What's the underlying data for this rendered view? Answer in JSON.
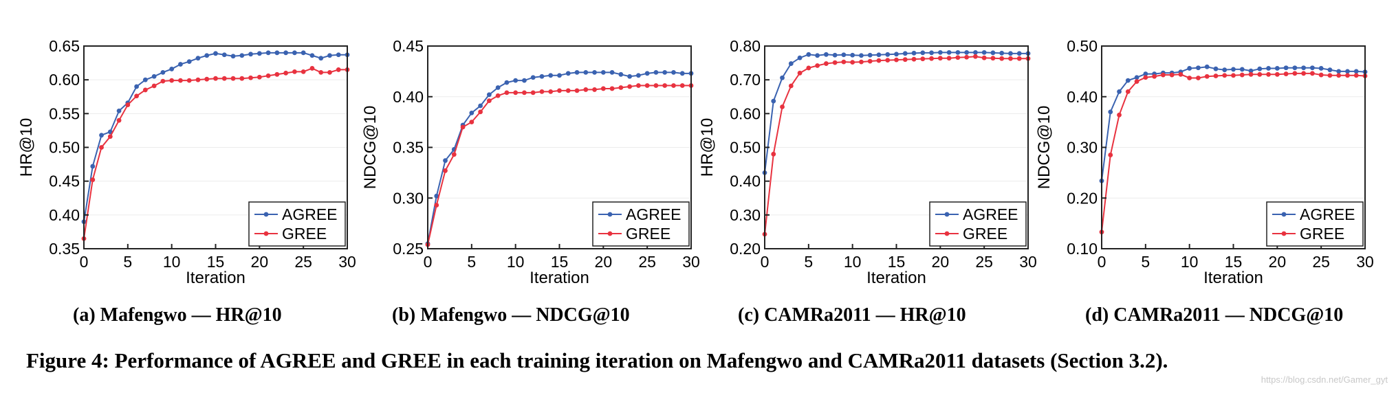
{
  "colors": {
    "agree": "#3a62b0",
    "gree": "#e8323f"
  },
  "legend_labels": [
    "AGREE",
    "GREE"
  ],
  "xlabel": "Iteration",
  "x_ticks": [
    "0",
    "5",
    "10",
    "15",
    "20",
    "25",
    "30"
  ],
  "chart_data": [
    {
      "type": "line",
      "title": "(a) Mafengwo — HR@10",
      "xlabel": "Iteration",
      "ylabel": "HR@10",
      "xlim": [
        0,
        30
      ],
      "ylim": [
        0.35,
        0.65
      ],
      "y_ticks": [
        "0.35",
        "0.40",
        "0.45",
        "0.50",
        "0.55",
        "0.60",
        "0.65"
      ],
      "legend": "bottom-right",
      "x": [
        0,
        1,
        2,
        3,
        4,
        5,
        6,
        7,
        8,
        9,
        10,
        11,
        12,
        13,
        14,
        15,
        16,
        17,
        18,
        19,
        20,
        21,
        22,
        23,
        24,
        25,
        26,
        27,
        28,
        29,
        30
      ],
      "series": [
        {
          "name": "AGREE",
          "values": [
            0.39,
            0.472,
            0.518,
            0.523,
            0.554,
            0.566,
            0.59,
            0.6,
            0.605,
            0.611,
            0.616,
            0.623,
            0.627,
            0.632,
            0.636,
            0.639,
            0.637,
            0.635,
            0.636,
            0.638,
            0.639,
            0.64,
            0.64,
            0.64,
            0.64,
            0.64,
            0.636,
            0.632,
            0.636,
            0.637,
            0.637
          ]
        },
        {
          "name": "GREE",
          "values": [
            0.365,
            0.452,
            0.5,
            0.516,
            0.54,
            0.563,
            0.576,
            0.585,
            0.591,
            0.598,
            0.599,
            0.599,
            0.599,
            0.6,
            0.601,
            0.602,
            0.602,
            0.602,
            0.602,
            0.603,
            0.604,
            0.606,
            0.608,
            0.61,
            0.612,
            0.612,
            0.617,
            0.611,
            0.611,
            0.615,
            0.615
          ]
        }
      ]
    },
    {
      "type": "line",
      "title": "(b) Mafengwo — NDCG@10",
      "xlabel": "Iteration",
      "ylabel": "NDCG@10",
      "xlim": [
        0,
        30
      ],
      "ylim": [
        0.25,
        0.45
      ],
      "y_ticks": [
        "0.25",
        "0.30",
        "0.35",
        "0.40",
        "0.45"
      ],
      "legend": "bottom-right",
      "x": [
        0,
        1,
        2,
        3,
        4,
        5,
        6,
        7,
        8,
        9,
        10,
        11,
        12,
        13,
        14,
        15,
        16,
        17,
        18,
        19,
        20,
        21,
        22,
        23,
        24,
        25,
        26,
        27,
        28,
        29,
        30
      ],
      "series": [
        {
          "name": "AGREE",
          "values": [
            0.255,
            0.302,
            0.337,
            0.348,
            0.372,
            0.384,
            0.391,
            0.402,
            0.409,
            0.414,
            0.416,
            0.416,
            0.419,
            0.42,
            0.421,
            0.421,
            0.423,
            0.424,
            0.424,
            0.424,
            0.424,
            0.424,
            0.422,
            0.42,
            0.421,
            0.423,
            0.424,
            0.424,
            0.424,
            0.423,
            0.423
          ]
        },
        {
          "name": "GREE",
          "values": [
            0.254,
            0.293,
            0.327,
            0.343,
            0.37,
            0.375,
            0.385,
            0.396,
            0.401,
            0.404,
            0.404,
            0.404,
            0.404,
            0.405,
            0.405,
            0.406,
            0.406,
            0.406,
            0.407,
            0.407,
            0.408,
            0.408,
            0.409,
            0.41,
            0.411,
            0.411,
            0.411,
            0.411,
            0.411,
            0.411,
            0.411
          ]
        }
      ]
    },
    {
      "type": "line",
      "title": "(c) CAMRa2011 — HR@10",
      "xlabel": "Iteration",
      "ylabel": "HR@10",
      "xlim": [
        0,
        30
      ],
      "ylim": [
        0.2,
        0.8
      ],
      "y_ticks": [
        "0.20",
        "0.30",
        "0.40",
        "0.50",
        "0.60",
        "0.70",
        "0.80"
      ],
      "legend": "bottom-right",
      "x": [
        0,
        1,
        2,
        3,
        4,
        5,
        6,
        7,
        8,
        9,
        10,
        11,
        12,
        13,
        14,
        15,
        16,
        17,
        18,
        19,
        20,
        21,
        22,
        23,
        24,
        25,
        26,
        27,
        28,
        29,
        30
      ],
      "series": [
        {
          "name": "AGREE",
          "values": [
            0.425,
            0.637,
            0.706,
            0.748,
            0.765,
            0.775,
            0.772,
            0.775,
            0.773,
            0.774,
            0.773,
            0.772,
            0.773,
            0.774,
            0.775,
            0.776,
            0.778,
            0.779,
            0.78,
            0.78,
            0.781,
            0.781,
            0.781,
            0.781,
            0.781,
            0.781,
            0.78,
            0.779,
            0.778,
            0.778,
            0.778
          ]
        },
        {
          "name": "GREE",
          "values": [
            0.243,
            0.48,
            0.62,
            0.682,
            0.72,
            0.735,
            0.742,
            0.748,
            0.751,
            0.753,
            0.752,
            0.753,
            0.755,
            0.757,
            0.758,
            0.759,
            0.76,
            0.761,
            0.762,
            0.763,
            0.764,
            0.764,
            0.766,
            0.767,
            0.769,
            0.765,
            0.764,
            0.763,
            0.763,
            0.763,
            0.763
          ]
        }
      ]
    },
    {
      "type": "line",
      "title": "(d) CAMRa2011 — NDCG@10",
      "xlabel": "Iteration",
      "ylabel": "NDCG@10",
      "xlim": [
        0,
        30
      ],
      "ylim": [
        0.1,
        0.5
      ],
      "y_ticks": [
        "0.10",
        "0.20",
        "0.30",
        "0.40",
        "0.50"
      ],
      "legend": "bottom-right",
      "x": [
        0,
        1,
        2,
        3,
        4,
        5,
        6,
        7,
        8,
        9,
        10,
        11,
        12,
        13,
        14,
        15,
        16,
        17,
        18,
        19,
        20,
        21,
        22,
        23,
        24,
        25,
        26,
        27,
        28,
        29,
        30
      ],
      "series": [
        {
          "name": "AGREE",
          "values": [
            0.234,
            0.37,
            0.41,
            0.432,
            0.438,
            0.445,
            0.445,
            0.447,
            0.447,
            0.449,
            0.456,
            0.457,
            0.459,
            0.455,
            0.453,
            0.454,
            0.454,
            0.451,
            0.455,
            0.456,
            0.456,
            0.457,
            0.457,
            0.457,
            0.457,
            0.456,
            0.453,
            0.45,
            0.45,
            0.45,
            0.449
          ]
        },
        {
          "name": "GREE",
          "values": [
            0.133,
            0.285,
            0.364,
            0.41,
            0.43,
            0.438,
            0.44,
            0.443,
            0.443,
            0.444,
            0.437,
            0.437,
            0.44,
            0.441,
            0.442,
            0.442,
            0.443,
            0.444,
            0.444,
            0.444,
            0.444,
            0.445,
            0.446,
            0.446,
            0.446,
            0.443,
            0.442,
            0.442,
            0.442,
            0.442,
            0.441
          ]
        }
      ]
    }
  ],
  "figure_caption": "Figure 4: Performance of AGREE and GREE in each training iteration on Mafengwo and CAMRa2011 datasets (Section 3.2).",
  "watermark": "https://blog.csdn.net/Gamer_gyt"
}
